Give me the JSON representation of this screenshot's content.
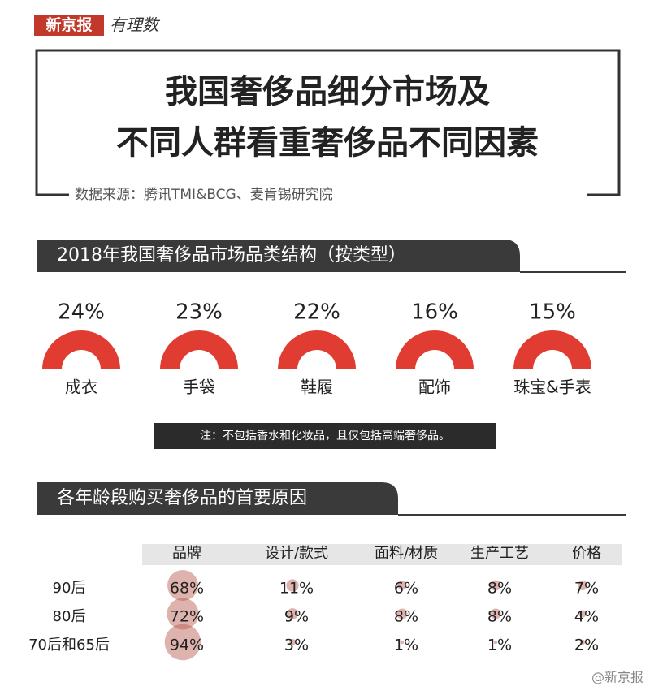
{
  "brand": "新京报",
  "brand_sub": "有理数",
  "title_lines": [
    "我国奢侈品细分市场及",
    "不同人群看重奢侈品不同因素"
  ],
  "source": "数据来源：腾讯TMI&BCG、麦肯锡研究院",
  "watermark": "@新京报",
  "chart_data": [
    {
      "type": "gauge",
      "title": "2018年我国奢侈品市场品类结构（按类型）",
      "categories": [
        "成衣",
        "手袋",
        "鞋履",
        "配饰",
        "珠宝&手表"
      ],
      "values": [
        24,
        23,
        22,
        16,
        15
      ],
      "value_labels": [
        "24%",
        "23%",
        "22%",
        "16%",
        "15%"
      ],
      "color": "#e03c31",
      "note": "注：不包括香水和化妆品，且仅包括高端奢侈品。"
    },
    {
      "type": "bubble-table",
      "title": "各年龄段购买奢侈品的首要原因",
      "categories": [
        "90后",
        "80后",
        "70后和65后"
      ],
      "color": "#b5574c",
      "series": [
        {
          "name": "品牌",
          "values": [
            68,
            72,
            94
          ],
          "value_labels": [
            "68%",
            "72%",
            "94%"
          ]
        },
        {
          "name": "设计/款式",
          "values": [
            11,
            9,
            3
          ],
          "value_labels": [
            "11%",
            "9%",
            "3%"
          ]
        },
        {
          "name": "面料/材质",
          "values": [
            6,
            8,
            1
          ],
          "value_labels": [
            "6%",
            "8%",
            "1%"
          ]
        },
        {
          "name": "生产工艺",
          "values": [
            8,
            8,
            1
          ],
          "value_labels": [
            "8%",
            "8%",
            "1%"
          ]
        },
        {
          "name": "价格",
          "values": [
            7,
            4,
            2
          ],
          "value_labels": [
            "7%",
            "4%",
            "2%"
          ]
        }
      ]
    }
  ]
}
